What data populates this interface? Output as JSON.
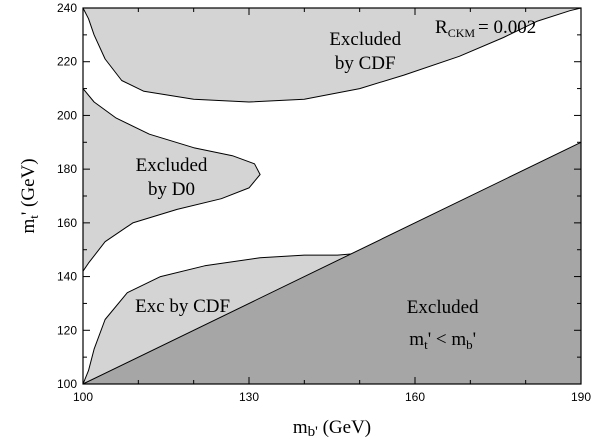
{
  "chart_data": {
    "type": "area",
    "title": "",
    "annotation": {
      "main": "R",
      "sub": "CKM",
      "rest": "= 0.002"
    },
    "xlabel": {
      "main": "m",
      "sub": "b'",
      "rest": " (GeV)"
    },
    "ylabel": {
      "main": "m",
      "sub": "t",
      "rest": "' (GeV)"
    },
    "xlim": [
      100,
      190
    ],
    "ylim": [
      100,
      240
    ],
    "xticks": [
      100,
      130,
      160,
      190
    ],
    "yticks": [
      100,
      120,
      140,
      160,
      180,
      200,
      220,
      240
    ],
    "grid": false,
    "colors": {
      "light_region": "#d4d4d4",
      "dark_region": "#a6a6a6",
      "outline": "#000000"
    },
    "regions": [
      {
        "name": "cdf-upper",
        "shade": "light",
        "label_lines": [
          "Excluded",
          "by CDF"
        ],
        "label_at": [
          151,
          224
        ],
        "points": [
          [
            100,
            240
          ],
          [
            190,
            240
          ],
          [
            188,
            239
          ],
          [
            182,
            235
          ],
          [
            176,
            229
          ],
          [
            168,
            222
          ],
          [
            158,
            215
          ],
          [
            150,
            210
          ],
          [
            140,
            206
          ],
          [
            130,
            205
          ],
          [
            120,
            206
          ],
          [
            111,
            209
          ],
          [
            107,
            213
          ],
          [
            104,
            221
          ],
          [
            102,
            230
          ],
          [
            101,
            236
          ]
        ]
      },
      {
        "name": "d0",
        "shade": "light",
        "label_lines": [
          "Excluded",
          "by D0"
        ],
        "label_at": [
          116,
          177
        ],
        "points": [
          [
            100,
            210
          ],
          [
            102,
            205
          ],
          [
            106,
            199
          ],
          [
            112,
            193
          ],
          [
            120,
            188
          ],
          [
            127,
            185
          ],
          [
            131,
            182
          ],
          [
            132,
            178
          ],
          [
            130,
            173
          ],
          [
            125,
            169
          ],
          [
            117,
            165
          ],
          [
            109,
            160
          ],
          [
            104,
            153
          ],
          [
            101,
            145
          ],
          [
            100,
            142
          ]
        ]
      },
      {
        "name": "cdf-lower",
        "shade": "light",
        "label_lines": [
          "Exc by CDF"
        ],
        "label_at": [
          118,
          129
        ],
        "points": [
          [
            100,
            100
          ],
          [
            150,
            148.7
          ],
          [
            146,
            148
          ],
          [
            140,
            148
          ],
          [
            132,
            147
          ],
          [
            122,
            144
          ],
          [
            114,
            140
          ],
          [
            108,
            134
          ],
          [
            104,
            124
          ],
          [
            102,
            113
          ],
          [
            101,
            105
          ]
        ]
      },
      {
        "name": "kinematic",
        "shade": "dark",
        "label_lines": [
          "Excluded",
          ""
        ],
        "label_expr": {
          "main1": "m",
          "sub1": "t",
          "mid": "' < m",
          "sub2": "b",
          "tail": "'"
        },
        "label_at": [
          165,
          122
        ],
        "points": [
          [
            100,
            100
          ],
          [
            190,
            190
          ],
          [
            190,
            100
          ]
        ]
      }
    ]
  }
}
